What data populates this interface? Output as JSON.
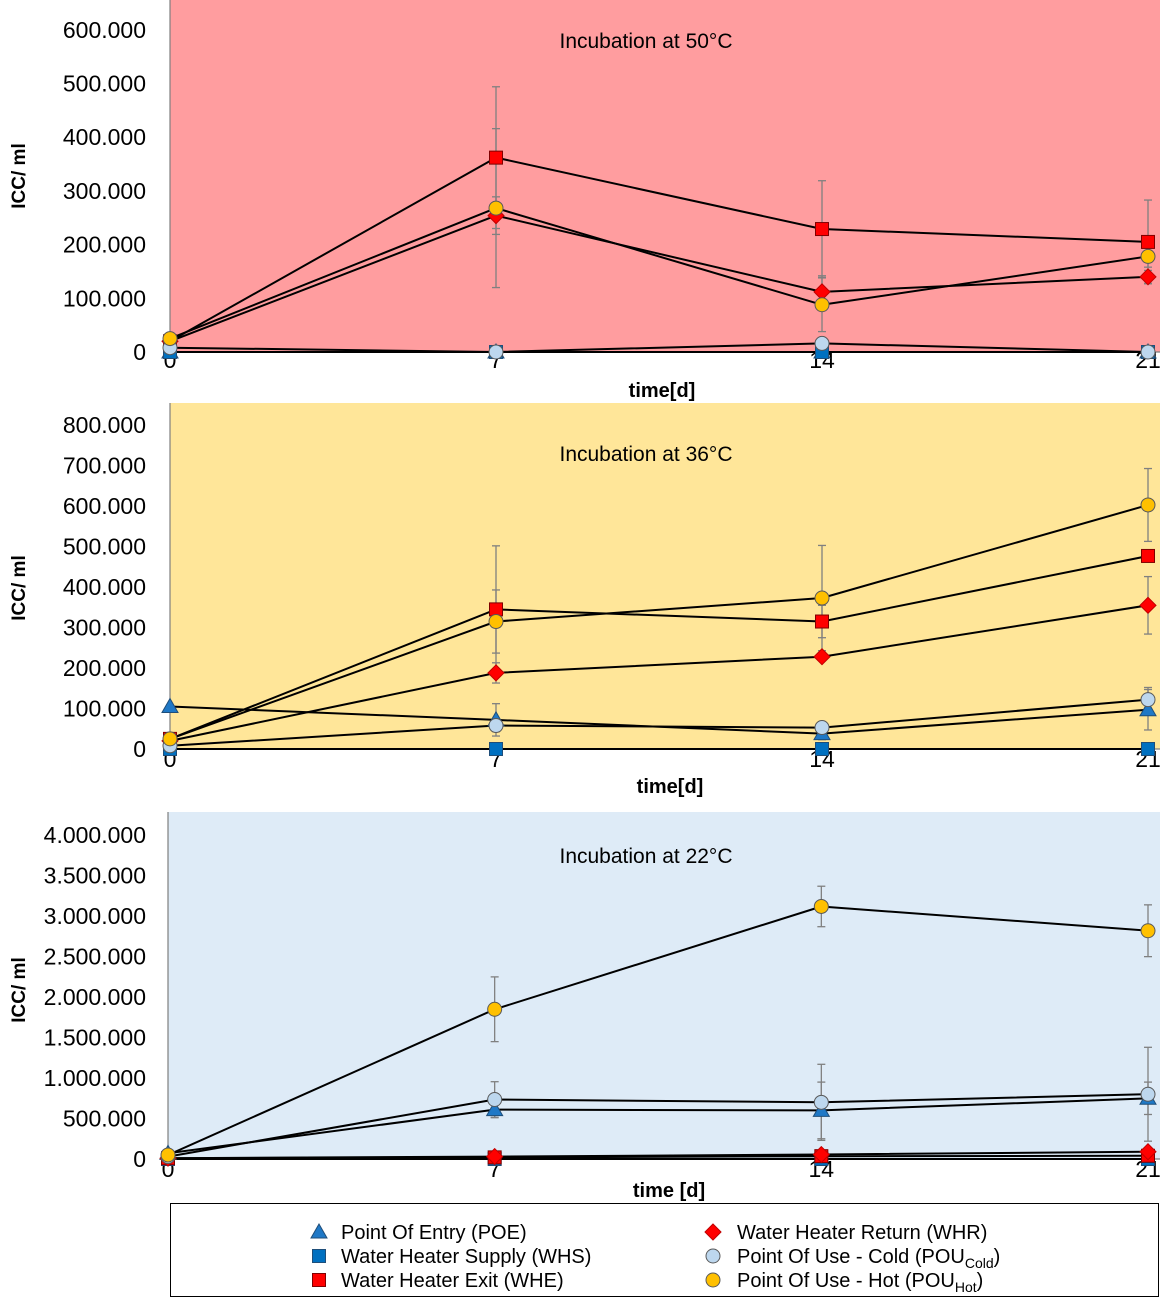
{
  "style": {
    "line_color": "#000000",
    "error_bar_color": "#808080",
    "axis_color": "#7F7F7F",
    "legend_border": "#000000"
  },
  "legend": {
    "entries": [
      {
        "text": "Point Of Entry (POE)",
        "marker": "triangle",
        "fill": "#1F78C6",
        "stroke": "#1F4E79"
      },
      {
        "text": "Water Heater Supply (WHS)",
        "marker": "square",
        "fill": "#0070C0",
        "stroke": "#1F4E79"
      },
      {
        "text": "Water Heater Exit (WHE)",
        "marker": "square",
        "fill": "#FF0000",
        "stroke": "#7F0000"
      },
      {
        "text": "Water Heater Return (WHR)",
        "marker": "diamond",
        "fill": "#FF0000",
        "stroke": "#C00000"
      },
      {
        "text": "Point Of Use - Cold (POU",
        "sub": "Cold",
        "suffix": ")",
        "marker": "circle",
        "fill": "#BDD7EE",
        "stroke": "#595959"
      },
      {
        "text": "Point Of Use - Hot (POU",
        "sub": "Hot",
        "suffix": ")",
        "marker": "circle",
        "fill": "#FFC000",
        "stroke": "#595959"
      }
    ]
  },
  "chart_data": [
    {
      "type": "line",
      "title": "Incubation at 50°C",
      "xlabel": "time[d]",
      "ylabel": "ICC/ ml",
      "x": [
        0,
        7,
        14,
        21
      ],
      "xtick_labels": [
        "0",
        "7",
        "14",
        "21"
      ],
      "xlim": [
        0,
        21
      ],
      "ylim": [
        0,
        650000
      ],
      "yticks": [
        0,
        100000,
        200000,
        300000,
        400000,
        500000,
        600000
      ],
      "ytick_labels": [
        "0",
        "100.000",
        "200.000",
        "300.000",
        "400.000",
        "500.000",
        "600.000"
      ],
      "grid": false,
      "background": "#FF9D9F",
      "series": [
        {
          "legend_index": 0,
          "values": [
            0,
            0,
            0,
            0
          ],
          "err": [
            0,
            0,
            0,
            0
          ]
        },
        {
          "legend_index": 1,
          "values": [
            0,
            0,
            0,
            0
          ],
          "err": [
            0,
            0,
            0,
            0
          ]
        },
        {
          "legend_index": 2,
          "values": [
            20000,
            362000,
            229000,
            205000
          ],
          "err": [
            0,
            132000,
            90000,
            78000
          ]
        },
        {
          "legend_index": 3,
          "values": [
            20000,
            254000,
            112000,
            140000
          ],
          "err": [
            0,
            35000,
            30000,
            12000
          ]
        },
        {
          "legend_index": 4,
          "values": [
            8000,
            0,
            16000,
            0
          ],
          "err": [
            0,
            0,
            0,
            0
          ]
        },
        {
          "legend_index": 5,
          "values": [
            25000,
            268000,
            88000,
            178000
          ],
          "err": [
            0,
            148000,
            50000,
            20000
          ]
        }
      ]
    },
    {
      "type": "line",
      "title": "Incubation at 36°C",
      "xlabel": "time[d]",
      "ylabel": "ICC/ ml",
      "x": [
        0,
        7,
        14,
        21
      ],
      "xtick_labels": [
        "0",
        "7",
        "14",
        "21"
      ],
      "xlim": [
        0,
        21
      ],
      "ylim": [
        0,
        850000
      ],
      "yticks": [
        0,
        100000,
        200000,
        300000,
        400000,
        500000,
        600000,
        700000,
        800000
      ],
      "ytick_labels": [
        "0",
        "100.000",
        "200.000",
        "300.000",
        "400.000",
        "500.000",
        "600.000",
        "700.000",
        "800.000"
      ],
      "grid": false,
      "background": "#FFE699",
      "series": [
        {
          "legend_index": 0,
          "values": [
            105000,
            72000,
            38000,
            97000
          ],
          "err": [
            0,
            40000,
            15000,
            50000
          ]
        },
        {
          "legend_index": 1,
          "values": [
            0,
            0,
            0,
            0
          ],
          "err": [
            0,
            0,
            0,
            0
          ]
        },
        {
          "legend_index": 2,
          "values": [
            25000,
            345000,
            315000,
            477000
          ],
          "err": [
            0,
            157000,
            40000,
            0
          ]
        },
        {
          "legend_index": 3,
          "values": [
            20000,
            188000,
            228000,
            355000
          ],
          "err": [
            0,
            25000,
            0,
            71000
          ]
        },
        {
          "legend_index": 4,
          "values": [
            8000,
            58000,
            53000,
            122000
          ],
          "err": [
            0,
            15000,
            8000,
            30000
          ]
        },
        {
          "legend_index": 5,
          "values": [
            25000,
            315000,
            373000,
            603000
          ],
          "err": [
            0,
            78000,
            130000,
            90000
          ]
        }
      ]
    },
    {
      "type": "line",
      "title": "Incubation at 22°C",
      "xlabel": "time [d]",
      "ylabel": "ICC/ ml",
      "x": [
        0,
        7,
        14,
        21
      ],
      "xtick_labels": [
        "0",
        "7",
        "14",
        "21"
      ],
      "xlim": [
        0,
        21
      ],
      "ylim": [
        0,
        4250000
      ],
      "yticks": [
        0,
        500000,
        1000000,
        1500000,
        2000000,
        2500000,
        3000000,
        3500000,
        4000000
      ],
      "ytick_labels": [
        "0",
        "500.000",
        "1.000.000",
        "1.500.000",
        "2.000.000",
        "2.500.000",
        "3.000.000",
        "3.500.000",
        "4.000.000"
      ],
      "grid": false,
      "background": "#DEEBF7",
      "series": [
        {
          "legend_index": 0,
          "values": [
            70000,
            610000,
            600000,
            750000
          ],
          "err": [
            0,
            100000,
            350000,
            200000
          ]
        },
        {
          "legend_index": 1,
          "values": [
            0,
            0,
            0,
            0
          ],
          "err": [
            0,
            0,
            0,
            0
          ]
        },
        {
          "legend_index": 2,
          "values": [
            10000,
            20000,
            35000,
            40000
          ],
          "err": [
            0,
            0,
            0,
            0
          ]
        },
        {
          "legend_index": 3,
          "values": [
            10000,
            30000,
            55000,
            90000
          ],
          "err": [
            0,
            0,
            0,
            0
          ]
        },
        {
          "legend_index": 4,
          "values": [
            30000,
            735000,
            700000,
            800000
          ],
          "err": [
            0,
            220000,
            470000,
            580000
          ]
        },
        {
          "legend_index": 5,
          "values": [
            50000,
            1850000,
            3120000,
            2820000
          ],
          "err": [
            0,
            400000,
            250000,
            320000
          ]
        }
      ]
    }
  ]
}
